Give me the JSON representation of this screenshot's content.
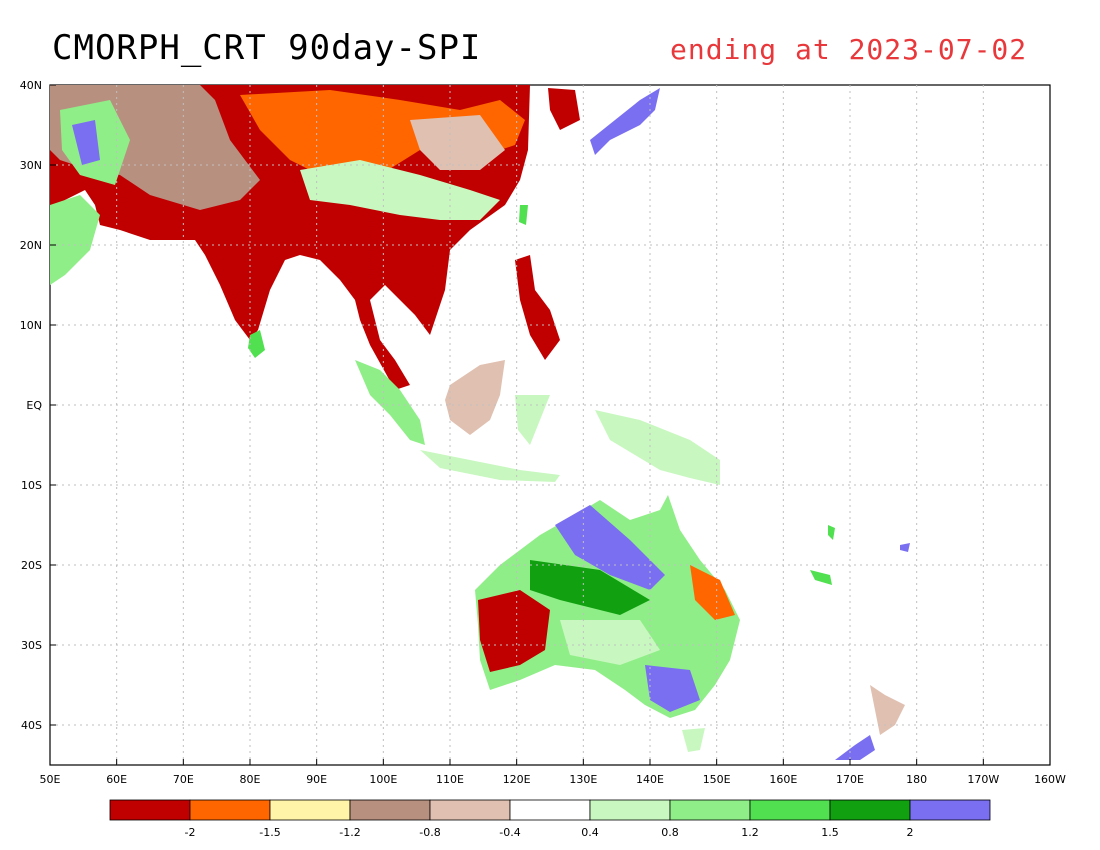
{
  "title": "CMORPH_CRT 90day-SPI",
  "subtitle": "ending at 2023-07-02",
  "colors": {
    "subtitle": "#e8383b",
    "grid": "#bfbfbf",
    "coast": "#000000",
    "ocean": "#ffffff"
  },
  "map": {
    "lon_range": [
      "50E",
      "160W"
    ],
    "lat_range": [
      "45S",
      "40N"
    ],
    "lon_labels": [
      "50E",
      "60E",
      "70E",
      "80E",
      "90E",
      "100E",
      "110E",
      "120E",
      "130E",
      "140E",
      "150E",
      "160E",
      "170E",
      "180",
      "170W",
      "160W"
    ],
    "lat_labels": [
      "40N",
      "30N",
      "20N",
      "10N",
      "EQ",
      "10S",
      "20S",
      "30S",
      "40S"
    ],
    "grid": "dotted"
  },
  "legend": {
    "colors": [
      "#c00000",
      "#ff6600",
      "#fff4a8",
      "#b89080",
      "#e0c0b0",
      "#ffffff",
      "#c8f8c0",
      "#90ee88",
      "#50e050",
      "#10a010",
      "#7a6ff0"
    ],
    "labels": [
      "-2",
      "-1.5",
      "-1.2",
      "-0.8",
      "-0.4",
      "0.4",
      "0.8",
      "1.2",
      "1.5",
      "2"
    ]
  }
}
